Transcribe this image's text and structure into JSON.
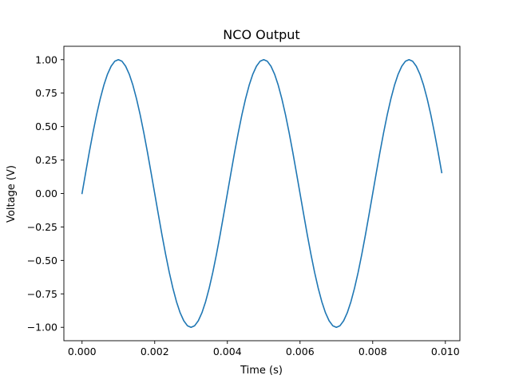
{
  "chart_data": {
    "type": "line",
    "title": "NCO Output",
    "xlabel": "Time (s)",
    "ylabel": "Voltage (V)",
    "xlim": [
      -0.0005,
      0.0104
    ],
    "ylim": [
      -1.1,
      1.1
    ],
    "grid": false,
    "legend": "none",
    "x_ticks": [
      0.0,
      0.002,
      0.004,
      0.006,
      0.008,
      0.01
    ],
    "x_tick_labels": [
      "0.000",
      "0.002",
      "0.004",
      "0.006",
      "0.008",
      "0.010"
    ],
    "y_ticks": [
      -1.0,
      -0.75,
      -0.5,
      -0.25,
      0.0,
      0.25,
      0.5,
      0.75,
      1.0
    ],
    "y_tick_labels": [
      "−1.00",
      "−0.75",
      "−0.50",
      "−0.25",
      "0.00",
      "0.25",
      "0.50",
      "0.75",
      "1.00"
    ],
    "series": [
      {
        "color": "#1f77b4",
        "x_start": 0.0,
        "x_step": 0.0001,
        "values": [
          0.0,
          0.156,
          0.309,
          0.454,
          0.588,
          0.707,
          0.809,
          0.891,
          0.951,
          0.988,
          1.0,
          0.988,
          0.951,
          0.891,
          0.809,
          0.707,
          0.588,
          0.454,
          0.309,
          0.156,
          0.0,
          -0.156,
          -0.309,
          -0.454,
          -0.588,
          -0.707,
          -0.809,
          -0.891,
          -0.951,
          -0.988,
          -1.0,
          -0.988,
          -0.951,
          -0.891,
          -0.809,
          -0.707,
          -0.588,
          -0.454,
          -0.309,
          -0.156,
          0.0,
          0.156,
          0.309,
          0.454,
          0.588,
          0.707,
          0.809,
          0.891,
          0.951,
          0.988,
          1.0,
          0.988,
          0.951,
          0.891,
          0.809,
          0.707,
          0.588,
          0.454,
          0.309,
          0.156,
          0.0,
          -0.156,
          -0.309,
          -0.454,
          -0.588,
          -0.707,
          -0.809,
          -0.891,
          -0.951,
          -0.988,
          -1.0,
          -0.988,
          -0.951,
          -0.891,
          -0.809,
          -0.707,
          -0.588,
          -0.454,
          -0.309,
          -0.156,
          0.0,
          0.156,
          0.309,
          0.454,
          0.588,
          0.707,
          0.809,
          0.891,
          0.951,
          0.988,
          1.0,
          0.988,
          0.951,
          0.891,
          0.809,
          0.707,
          0.588,
          0.454,
          0.309,
          0.156
        ]
      }
    ]
  }
}
